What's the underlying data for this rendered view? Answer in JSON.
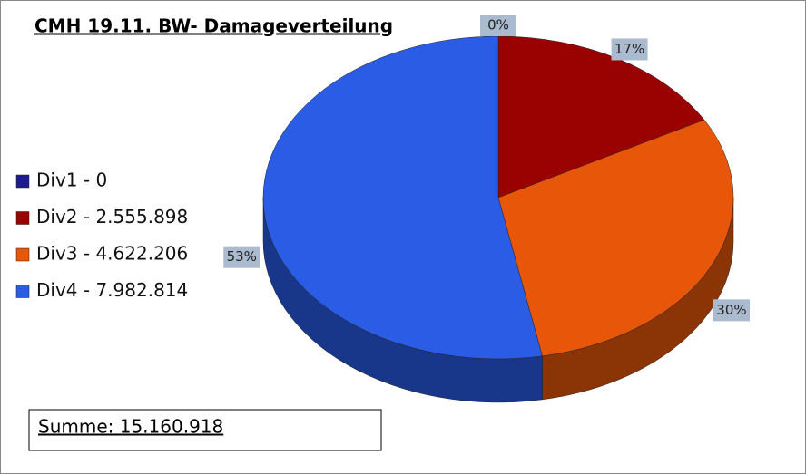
{
  "chart_data": {
    "type": "pie",
    "title": "CMH 19.11.  BW- Damageverteilung",
    "categories": [
      "Div1 - 0",
      "Div2 - 2.555.898",
      "Div3 - 4.622.206",
      "Div4 - 7.982.814"
    ],
    "values": [
      0,
      17,
      30,
      53
    ],
    "value_labels": [
      "0%",
      "17%",
      "30%",
      "53%"
    ],
    "colors": [
      "#1c1c8e",
      "#9a0202",
      "#e8560a",
      "#2a5ce6"
    ],
    "legend": "left",
    "annotation": "Summe:  15.160.918"
  }
}
